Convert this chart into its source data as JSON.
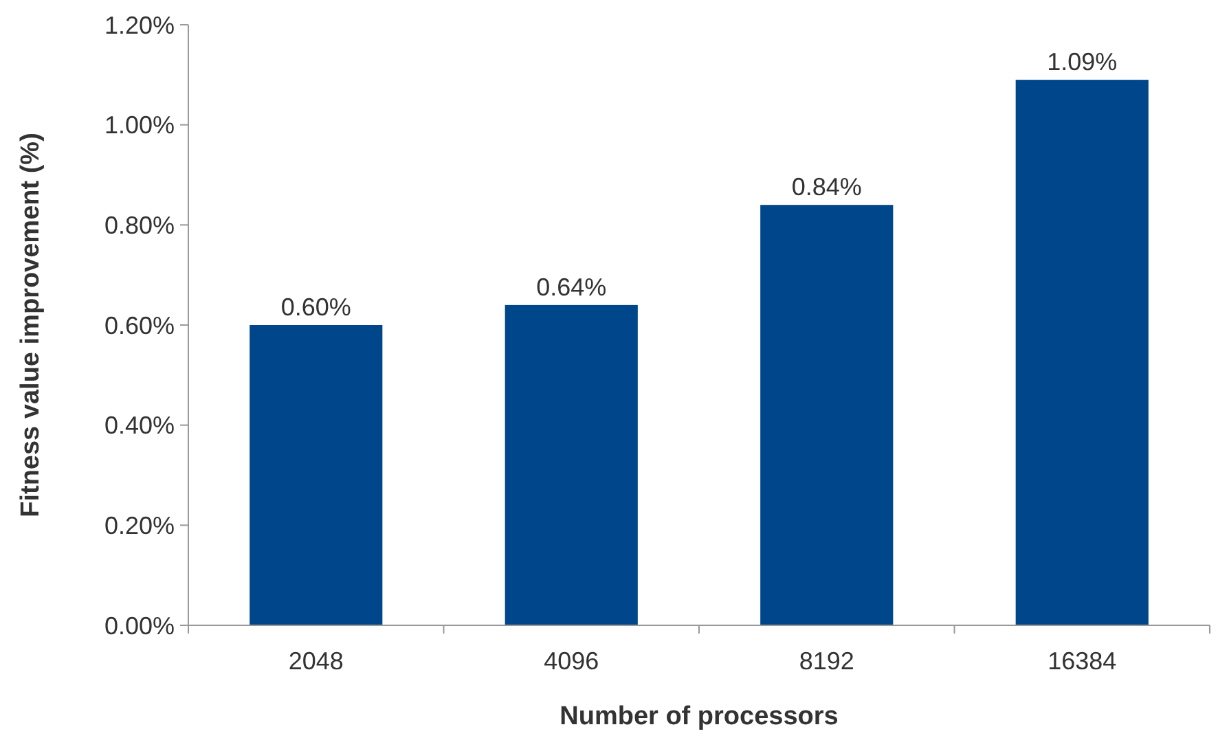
{
  "chart_data": {
    "type": "bar",
    "xlabel": "Number of processors",
    "ylabel": "Fitness value improvement (%)",
    "categories": [
      "2048",
      "4096",
      "8192",
      "16384"
    ],
    "values": [
      0.6,
      0.64,
      0.84,
      1.09
    ],
    "value_labels": [
      "0.60%",
      "0.64%",
      "0.84%",
      "1.09%"
    ],
    "color": "#00468b",
    "ylim": [
      0,
      1.2
    ],
    "yticks": [
      {
        "value": 0,
        "label": "0.00%"
      },
      {
        "value": 0.2,
        "label": "0.20%"
      },
      {
        "value": 0.4,
        "label": "0.40%"
      },
      {
        "value": 0.6,
        "label": "0.60%"
      },
      {
        "value": 0.8,
        "label": "0.80%"
      },
      {
        "value": 1.0,
        "label": "1.00%"
      },
      {
        "value": 1.2,
        "label": "1.20%"
      }
    ],
    "grid": false
  }
}
